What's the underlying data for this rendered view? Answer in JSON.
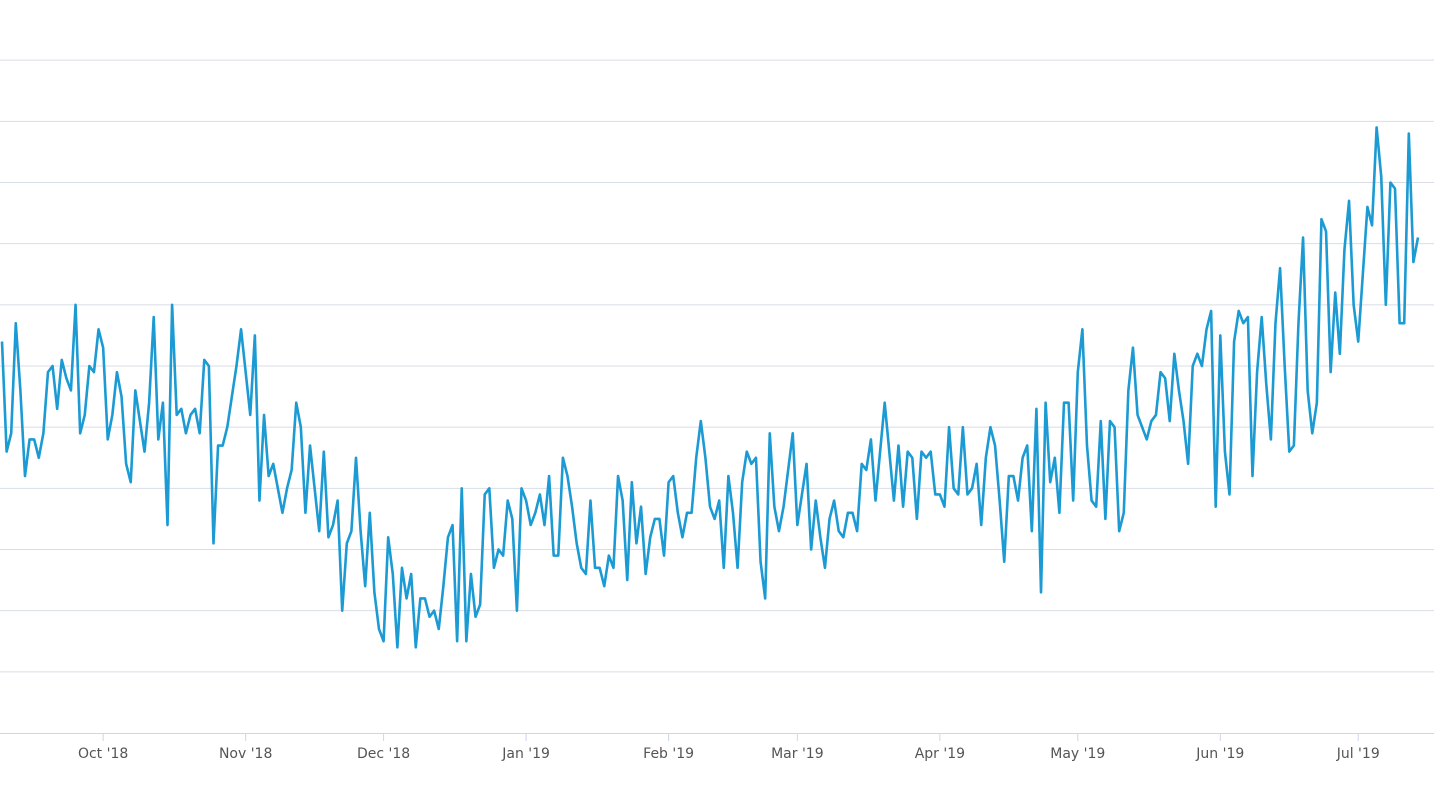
{
  "chart_data": {
    "type": "line",
    "series": [
      {
        "color": "#1b9ad3",
        "values": [
          6.4,
          4.6,
          4.9,
          6.7,
          5.6,
          4.2,
          4.8,
          4.8,
          4.5,
          4.9,
          5.9,
          6.0,
          5.3,
          6.1,
          5.8,
          5.6,
          7.0,
          4.9,
          5.2,
          6.0,
          5.9,
          6.6,
          6.3,
          4.8,
          5.2,
          5.9,
          5.5,
          4.4,
          4.1,
          5.6,
          5.1,
          4.6,
          5.4,
          6.8,
          4.8,
          5.4,
          3.4,
          7.0,
          5.2,
          5.3,
          4.9,
          5.2,
          5.3,
          4.9,
          6.1,
          6.0,
          3.1,
          4.7,
          4.7,
          5.0,
          5.5,
          6.0,
          6.6,
          5.9,
          5.2,
          6.5,
          3.8,
          5.2,
          4.2,
          4.4,
          4.0,
          3.6,
          4.0,
          4.3,
          5.4,
          5.0,
          3.6,
          4.7,
          4.0,
          3.3,
          4.6,
          3.2,
          3.4,
          3.8,
          2.0,
          3.1,
          3.3,
          4.5,
          3.3,
          2.4,
          3.6,
          2.3,
          1.7,
          1.5,
          3.2,
          2.6,
          1.4,
          2.7,
          2.2,
          2.6,
          1.4,
          2.2,
          2.2,
          1.9,
          2.0,
          1.7,
          2.4,
          3.2,
          3.4,
          1.5,
          4.0,
          1.5,
          2.6,
          1.9,
          2.1,
          3.9,
          4.0,
          2.7,
          3.0,
          2.9,
          3.8,
          3.5,
          2.0,
          4.0,
          3.8,
          3.4,
          3.6,
          3.9,
          3.4,
          4.2,
          2.9,
          2.9,
          4.5,
          4.2,
          3.7,
          3.1,
          2.7,
          2.6,
          3.8,
          2.7,
          2.7,
          2.4,
          2.9,
          2.7,
          4.2,
          3.8,
          2.5,
          4.1,
          3.1,
          3.7,
          2.6,
          3.2,
          3.5,
          3.5,
          2.9,
          4.1,
          4.2,
          3.6,
          3.2,
          3.6,
          3.6,
          4.5,
          5.1,
          4.5,
          3.7,
          3.5,
          3.8,
          2.7,
          4.2,
          3.6,
          2.7,
          4.1,
          4.6,
          4.4,
          4.5,
          2.8,
          2.2,
          4.9,
          3.7,
          3.3,
          3.7,
          4.3,
          4.9,
          3.4,
          3.9,
          4.4,
          3.0,
          3.8,
          3.2,
          2.7,
          3.5,
          3.8,
          3.3,
          3.2,
          3.6,
          3.6,
          3.3,
          4.4,
          4.3,
          4.8,
          3.8,
          4.6,
          5.4,
          4.6,
          3.8,
          4.7,
          3.7,
          4.6,
          4.5,
          3.5,
          4.6,
          4.5,
          4.6,
          3.9,
          3.9,
          3.7,
          5.0,
          4.0,
          3.9,
          5.0,
          3.9,
          4.0,
          4.4,
          3.4,
          4.5,
          5.0,
          4.7,
          3.8,
          2.8,
          4.2,
          4.2,
          3.8,
          4.5,
          4.7,
          3.3,
          5.3,
          2.3,
          5.4,
          4.1,
          4.5,
          3.6,
          5.4,
          5.4,
          3.8,
          5.9,
          6.6,
          4.7,
          3.8,
          3.7,
          5.1,
          3.5,
          5.1,
          5.0,
          3.3,
          3.6,
          5.6,
          6.3,
          5.2,
          5.0,
          4.8,
          5.1,
          5.2,
          5.9,
          5.8,
          5.1,
          6.2,
          5.6,
          5.1,
          4.4,
          6.0,
          6.2,
          6.0,
          6.6,
          6.9,
          3.7,
          6.5,
          4.6,
          3.9,
          6.4,
          6.9,
          6.7,
          6.8,
          4.2,
          5.9,
          6.8,
          5.7,
          4.8,
          6.7,
          7.6,
          6.0,
          4.6,
          4.7,
          6.7,
          8.1,
          5.6,
          4.9,
          5.4,
          8.4,
          8.2,
          5.9,
          7.2,
          6.2,
          7.9,
          8.7,
          7.0,
          6.4,
          7.5,
          8.6,
          8.3,
          9.9,
          9.1,
          7.0,
          9.0,
          8.9,
          6.7,
          6.7,
          9.8,
          7.7,
          8.1
        ]
      }
    ],
    "xticks": [
      {
        "value": 22,
        "label": "Oct '18"
      },
      {
        "value": 53,
        "label": "Nov '18"
      },
      {
        "value": 83,
        "label": "Dec '18"
      },
      {
        "value": 114,
        "label": "Jan '19"
      },
      {
        "value": 145,
        "label": "Feb '19"
      },
      {
        "value": 173,
        "label": "Mar '19"
      },
      {
        "value": 204,
        "label": "Apr '19"
      },
      {
        "value": 234,
        "label": "May '19"
      },
      {
        "value": 265,
        "label": "Jun '19"
      },
      {
        "value": 295,
        "label": "Jul '19"
      }
    ],
    "ylim": [
      0,
      12
    ],
    "ygrid": [
      1,
      2,
      3,
      4,
      5,
      6,
      7,
      8,
      9,
      10,
      11
    ]
  }
}
